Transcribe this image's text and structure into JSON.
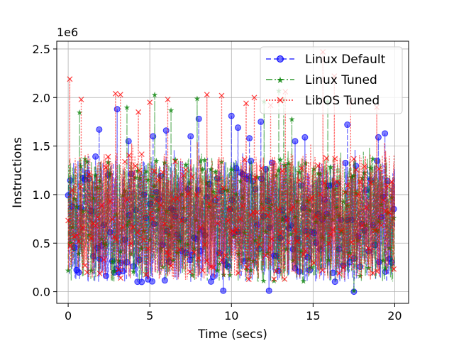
{
  "chart_data": {
    "type": "line",
    "xlabel": "Time (secs)",
    "ylabel": "Instructions",
    "y_offset_label": "1e6",
    "xlim": [
      -0.7,
      20.85
    ],
    "ylim": [
      -0.12,
      2.58
    ],
    "y_scale_factor": 1000000,
    "xticks": [
      0,
      5,
      10,
      15,
      20
    ],
    "xtick_labels": [
      "0",
      "5",
      "10",
      "15",
      "20"
    ],
    "yticks": [
      0.0,
      0.5,
      1.0,
      1.5,
      2.0,
      2.5
    ],
    "ytick_labels": [
      "0.0",
      "0.5",
      "1.0",
      "1.5",
      "2.0",
      "2.5"
    ],
    "grid": true,
    "legend_position": "top-right",
    "series": [
      {
        "name": "Linux Default",
        "color": "#0000ff",
        "line_style": "dashed",
        "marker": "circle",
        "time_range": [
          0,
          20
        ],
        "band": [
          0.1,
          1.35
        ],
        "notable_peaks": [
          {
            "x": 1.9,
            "y": 1.67
          },
          {
            "x": 3.0,
            "y": 1.88
          },
          {
            "x": 3.7,
            "y": 1.55
          },
          {
            "x": 5.2,
            "y": 1.6
          },
          {
            "x": 6.0,
            "y": 1.66
          },
          {
            "x": 7.5,
            "y": 1.6
          },
          {
            "x": 8.0,
            "y": 1.78
          },
          {
            "x": 10.0,
            "y": 1.81
          },
          {
            "x": 10.4,
            "y": 1.69
          },
          {
            "x": 11.1,
            "y": 1.58
          },
          {
            "x": 11.8,
            "y": 1.75
          },
          {
            "x": 13.9,
            "y": 1.55
          },
          {
            "x": 14.5,
            "y": 1.59
          },
          {
            "x": 17.1,
            "y": 1.72
          },
          {
            "x": 19.0,
            "y": 1.59
          },
          {
            "x": 19.4,
            "y": 1.63
          },
          {
            "x": 9.5,
            "y": 0.01
          },
          {
            "x": 12.3,
            "y": 0.01
          },
          {
            "x": 17.5,
            "y": 0.0
          }
        ]
      },
      {
        "name": "Linux Tuned",
        "color": "#008000",
        "line_style": "dashdot",
        "marker": "star",
        "time_range": [
          0,
          20
        ],
        "band": [
          0.1,
          1.38
        ],
        "notable_peaks": [
          {
            "x": 0.7,
            "y": 1.85
          },
          {
            "x": 3.6,
            "y": 1.9
          },
          {
            "x": 5.3,
            "y": 2.03
          },
          {
            "x": 6.3,
            "y": 1.87
          },
          {
            "x": 7.9,
            "y": 1.99
          },
          {
            "x": 12.0,
            "y": 1.96
          },
          {
            "x": 12.9,
            "y": 2.07
          },
          {
            "x": 13.2,
            "y": 1.98
          },
          {
            "x": 13.7,
            "y": 1.78
          },
          {
            "x": 15.9,
            "y": 1.96
          },
          {
            "x": 17.5,
            "y": 0.01
          }
        ]
      },
      {
        "name": "LibOS Tuned",
        "color": "#ff0000",
        "line_style": "dotted",
        "marker": "x",
        "time_range": [
          0,
          20
        ],
        "band": [
          0.12,
          1.42
        ],
        "notable_peaks": [
          {
            "x": 0.1,
            "y": 2.19
          },
          {
            "x": 0.8,
            "y": 1.98
          },
          {
            "x": 2.9,
            "y": 2.04
          },
          {
            "x": 3.2,
            "y": 2.03
          },
          {
            "x": 4.3,
            "y": 1.85
          },
          {
            "x": 5.0,
            "y": 1.95
          },
          {
            "x": 6.1,
            "y": 1.98
          },
          {
            "x": 8.5,
            "y": 2.03
          },
          {
            "x": 9.4,
            "y": 2.02
          },
          {
            "x": 10.9,
            "y": 1.94
          },
          {
            "x": 11.4,
            "y": 2.0
          },
          {
            "x": 12.4,
            "y": 1.92
          },
          {
            "x": 13.3,
            "y": 2.06
          },
          {
            "x": 15.6,
            "y": 2.47
          },
          {
            "x": 16.3,
            "y": 2.22
          },
          {
            "x": 17.3,
            "y": 1.95
          },
          {
            "x": 18.9,
            "y": 1.9
          }
        ]
      }
    ]
  }
}
